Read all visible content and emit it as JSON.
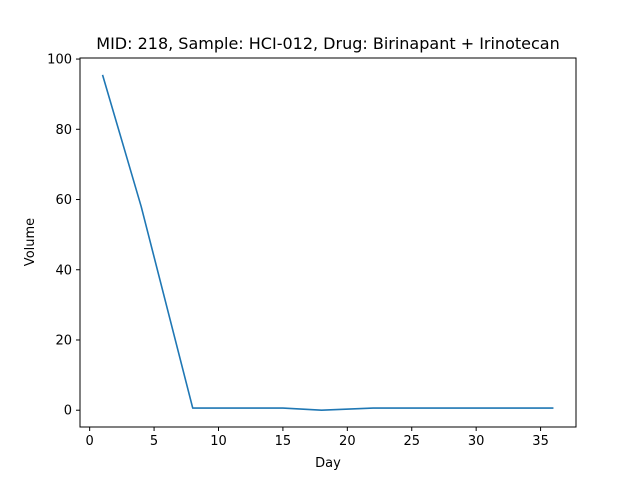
{
  "chart_data": {
    "type": "line",
    "title": "MID: 218, Sample: HCI-012, Drug: Birinapant + Irinotecan",
    "xlabel": "Day",
    "ylabel": "Volume",
    "xlim": [
      -0.75,
      37.75
    ],
    "ylim": [
      -4.78,
      100.3
    ],
    "xticks": [
      0,
      5,
      10,
      15,
      20,
      25,
      30,
      35
    ],
    "yticks": [
      0,
      20,
      40,
      60,
      80,
      100
    ],
    "grid": false,
    "series": [
      {
        "color": "#1f77b4",
        "x": [
          1,
          4,
          8,
          11,
          15,
          18,
          22,
          25,
          29,
          32,
          36
        ],
        "y": [
          95.5,
          58.0,
          0.6,
          0.6,
          0.6,
          0.0,
          0.6,
          0.6,
          0.6,
          0.6,
          0.6
        ]
      }
    ]
  }
}
